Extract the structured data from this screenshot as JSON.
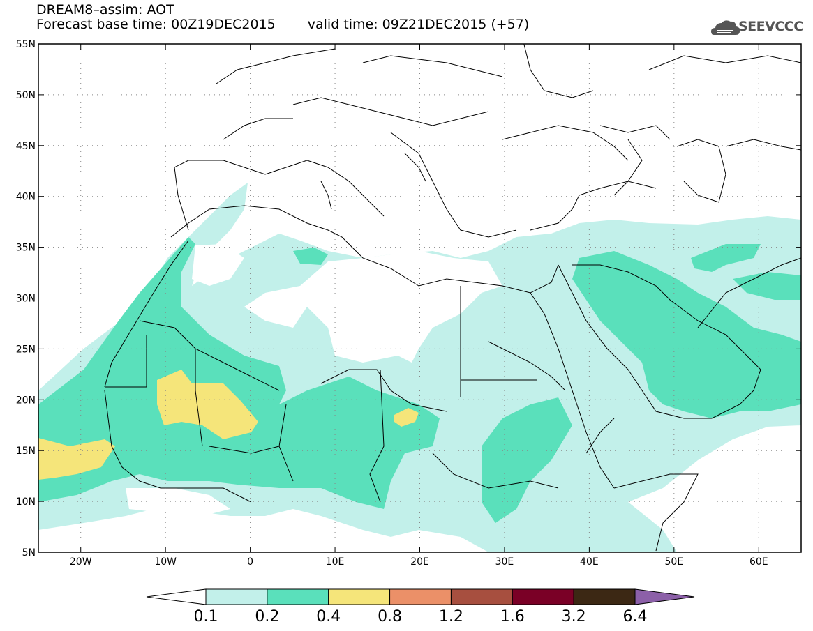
{
  "title": {
    "line1": "DREAM8–assim: AOT",
    "base_time": "Forecast base time: 00Z19DEC2015",
    "valid_time": "valid time: 09Z21DEC2015 (+57)"
  },
  "logo": {
    "text": "SEEVCCC",
    "icon": "cloud-logo-icon"
  },
  "map": {
    "lon_range": [
      -25,
      65
    ],
    "lat_range": [
      5,
      55
    ],
    "lat_ticks": [
      {
        "value": 5,
        "label": "5N"
      },
      {
        "value": 10,
        "label": "10N"
      },
      {
        "value": 15,
        "label": "15N"
      },
      {
        "value": 20,
        "label": "20N"
      },
      {
        "value": 25,
        "label": "25N"
      },
      {
        "value": 30,
        "label": "30N"
      },
      {
        "value": 35,
        "label": "35N"
      },
      {
        "value": 40,
        "label": "40N"
      },
      {
        "value": 45,
        "label": "45N"
      },
      {
        "value": 50,
        "label": "50N"
      },
      {
        "value": 55,
        "label": "55N"
      }
    ],
    "lon_ticks": [
      {
        "value": -20,
        "label": "20W"
      },
      {
        "value": -10,
        "label": "10W"
      },
      {
        "value": 0,
        "label": "0"
      },
      {
        "value": 10,
        "label": "10E"
      },
      {
        "value": 20,
        "label": "20E"
      },
      {
        "value": 30,
        "label": "30E"
      },
      {
        "value": 40,
        "label": "40E"
      },
      {
        "value": 50,
        "label": "50E"
      },
      {
        "value": 60,
        "label": "60E"
      }
    ]
  },
  "colorbar": {
    "colors": [
      "#ffffff",
      "#c2f0ea",
      "#5ae0bb",
      "#f5e57a",
      "#eb9068",
      "#a74f3f",
      "#7a0026",
      "#3c2814",
      "#8c60a8"
    ],
    "labels": [
      "0.1",
      "0.2",
      "0.4",
      "0.8",
      "1.2",
      "1.6",
      "3.2",
      "6.4"
    ]
  }
}
